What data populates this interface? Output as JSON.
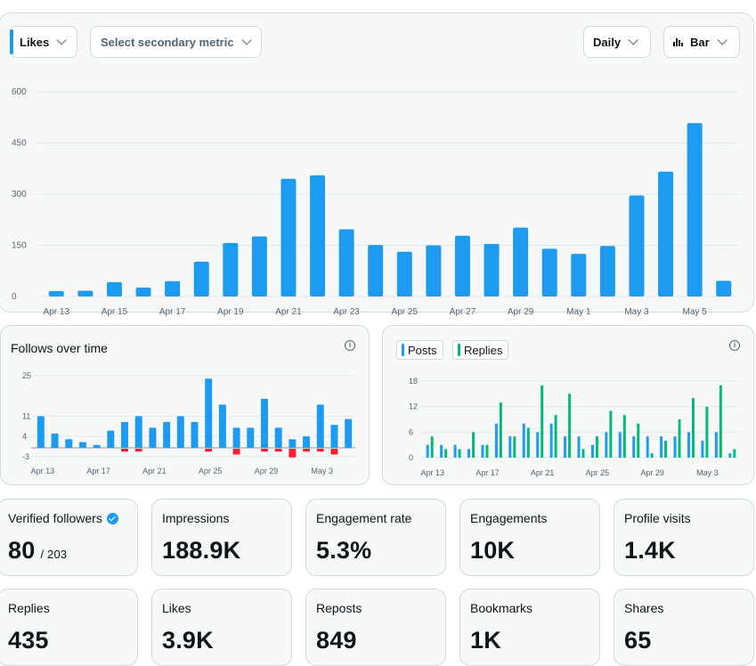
{
  "toolbar": {
    "primary_metric": "Likes",
    "secondary_metric_placeholder": "Select secondary metric",
    "interval": "Daily",
    "chart_kind": "Bar"
  },
  "colors": {
    "accent": "#1d9bf0",
    "negative": "#f4212e",
    "replies": "#00ba7c"
  },
  "follows": {
    "title": "Follows over time"
  },
  "posts": {
    "legend_posts": "Posts",
    "legend_replies": "Replies"
  },
  "chart_data": [
    {
      "type": "bar",
      "name": "likes",
      "yticks": [
        0,
        150,
        300,
        450,
        600
      ],
      "ylim": [
        0,
        600
      ],
      "xticks": [
        "Apr 13",
        "Apr 15",
        "Apr 17",
        "Apr 19",
        "Apr 21",
        "Apr 23",
        "Apr 25",
        "Apr 27",
        "Apr 29",
        "May 1",
        "May 3",
        "May 5"
      ],
      "values": [
        16,
        17,
        42,
        26,
        45,
        102,
        157,
        176,
        345,
        355,
        197,
        151,
        131,
        150,
        178,
        154,
        202,
        140,
        125,
        148,
        296,
        366,
        508,
        46
      ],
      "grid": true
    },
    {
      "type": "bar",
      "name": "follows",
      "title": "Follows over time",
      "yticks": [
        -3,
        4,
        11,
        25
      ],
      "ylim": [
        -4,
        25
      ],
      "xticks": [
        "Apr 13",
        "Apr 17",
        "Apr 21",
        "Apr 25",
        "Apr 29",
        "May 3"
      ],
      "positive": [
        11,
        5,
        3,
        2,
        1,
        6,
        9,
        11,
        7,
        9,
        11,
        9,
        24,
        15,
        7,
        7,
        17,
        7,
        3,
        4,
        15,
        8,
        10
      ],
      "negative": [
        0,
        0,
        0,
        0,
        0,
        0,
        -1,
        -1,
        0,
        0,
        0,
        0,
        -1,
        0,
        -2,
        0,
        -1,
        -1,
        -3,
        -1,
        -1,
        -2,
        0
      ],
      "grid": true
    },
    {
      "type": "bar",
      "name": "posts-replies",
      "yticks": [
        0,
        6,
        12,
        18
      ],
      "ylim": [
        0,
        18
      ],
      "xticks": [
        "Apr 13",
        "Apr 17",
        "Apr 21",
        "Apr 25",
        "Apr 29",
        "May 3"
      ],
      "series": [
        {
          "name": "Posts",
          "values": [
            3,
            3,
            3,
            2,
            3,
            8,
            5,
            8,
            6,
            8,
            5,
            5,
            3,
            6,
            6,
            5,
            5,
            5,
            5,
            6,
            4,
            6,
            1
          ]
        },
        {
          "name": "Replies",
          "values": [
            5,
            2,
            2,
            6,
            3,
            13,
            5,
            7,
            17,
            10,
            15,
            2,
            5,
            11,
            10,
            8,
            1,
            4,
            9,
            14,
            12,
            17,
            2
          ]
        }
      ],
      "grid": true
    }
  ],
  "stats": [
    {
      "label": "Verified followers",
      "value": "80",
      "sub": "/ 203",
      "verified": true
    },
    {
      "label": "Impressions",
      "value": "188.9K"
    },
    {
      "label": "Engagement rate",
      "value": "5.3%"
    },
    {
      "label": "Engagements",
      "value": "10K"
    },
    {
      "label": "Profile visits",
      "value": "1.4K"
    },
    {
      "label": "Replies",
      "value": "435"
    },
    {
      "label": "Likes",
      "value": "3.9K"
    },
    {
      "label": "Reposts",
      "value": "849"
    },
    {
      "label": "Bookmarks",
      "value": "1K"
    },
    {
      "label": "Shares",
      "value": "65"
    }
  ]
}
